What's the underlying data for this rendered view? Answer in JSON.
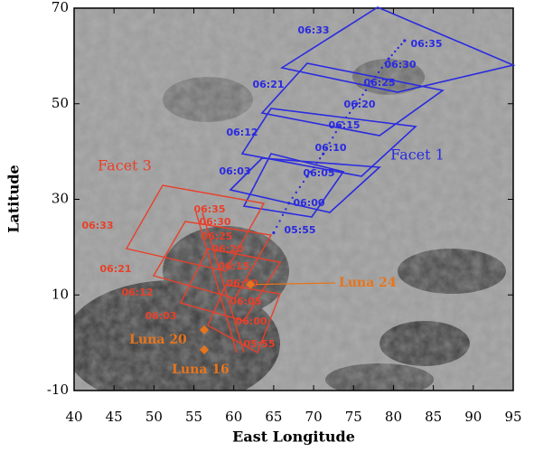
{
  "chart_data": {
    "type": "map",
    "xlabel": "East Longitude",
    "ylabel": "Latitude",
    "xlim": [
      40,
      95
    ],
    "ylim": [
      -10,
      70
    ],
    "xticks": [
      40,
      45,
      50,
      55,
      60,
      65,
      70,
      75,
      80,
      85,
      90,
      95
    ],
    "yticks": [
      -10,
      10,
      30,
      50,
      70
    ],
    "facets": [
      {
        "name": "Facet 1",
        "color": "#2a2ae0",
        "track_labels": [
          "06:35",
          "06:30",
          "06:25",
          "06:20",
          "06:15",
          "06:10",
          "06:05",
          "06:00",
          "05:55"
        ],
        "track_x": [
          81.4,
          79.4,
          77.3,
          75.4,
          73.2,
          71.2,
          69.2,
          66.9,
          65.0
        ],
        "track_y": [
          63.2,
          59.4,
          54.7,
          50.0,
          45.2,
          39.5,
          34.8,
          29.2,
          23.0
        ],
        "footprint_labels": [
          "06:33",
          "06:21",
          "06:12",
          "06:03"
        ]
      },
      {
        "name": "Facet 3",
        "color": "#e8402a",
        "track_labels": [
          "06:35",
          "06:30",
          "06:25",
          "06:20",
          "06:15",
          "06:10",
          "06:05",
          "06:00",
          "05:55"
        ],
        "footprint_labels": [
          "06:33",
          "06:21",
          "06:12",
          "06:03"
        ]
      }
    ],
    "sites": [
      {
        "name": "Luna 24",
        "x": 62.1,
        "y": 12.2
      },
      {
        "name": "Luna 20",
        "x": 56.3,
        "y": 2.7
      },
      {
        "name": "Luna 16",
        "x": 56.3,
        "y": -1.5
      }
    ],
    "site_color": "#e8741a"
  }
}
